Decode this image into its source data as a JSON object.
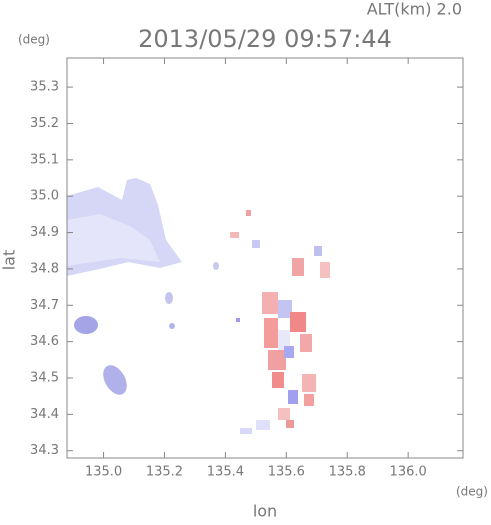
{
  "chart_data": {
    "type": "radar-map",
    "title": "2013/05/29 09:57:44",
    "annotation": "ALT(km) 2.0",
    "y_unit": "(deg)",
    "x_unit": "(deg)",
    "xlabel": "lon",
    "ylabel": "lat",
    "xlim": [
      134.88,
      136.18
    ],
    "ylim": [
      34.28,
      35.38
    ],
    "xticks": [
      {
        "value": 135,
        "label": "135.0"
      },
      135.2,
      135.4,
      135.6,
      135.8,
      {
        "value": 136,
        "label": "136.0"
      }
    ],
    "yticks": [
      34.3,
      34.4,
      34.5,
      34.6,
      34.7,
      34.8,
      34.9,
      {
        "value": 35,
        "label": "35.0"
      },
      35.1,
      35.2,
      35.3
    ],
    "grid": false
  }
}
